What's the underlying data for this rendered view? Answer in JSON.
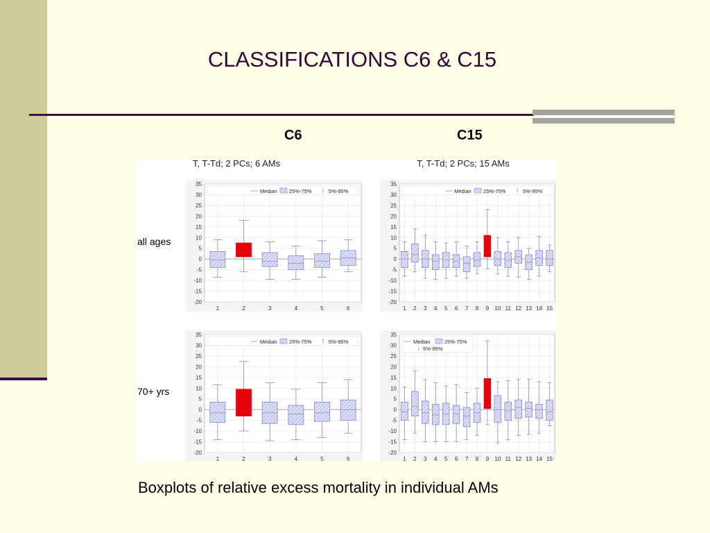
{
  "slide": {
    "title": "CLASSIFICATIONS C6 & C15",
    "left_column_label": "C6",
    "right_column_label": "C15",
    "caption": "Boxplots of relative excess mortality in individual AMs"
  },
  "figure": {
    "left_title": "T, T-Td; 2 PCs; 6 AMs",
    "right_title": "T, T-Td; 2 PCs; 15 AMs",
    "row_labels": [
      "all ages",
      "70+ yrs"
    ],
    "legend": {
      "median": "Median",
      "iqr": "25%-75%",
      "whisker": "5%-95%"
    }
  },
  "colors": {
    "box_fill": "#D8DCF4",
    "box_stroke": "#8888CC",
    "highlight": "#E8000B",
    "median": "#9999BB"
  },
  "chart_data": [
    {
      "type": "boxplot",
      "id": "c6-all-ages",
      "row": "all ages",
      "categories": [
        "1",
        "2",
        "3",
        "4",
        "5",
        "6"
      ],
      "ylim": [
        -20,
        35
      ],
      "yticks": [
        -20,
        -15,
        -10,
        -5,
        0,
        5,
        10,
        15,
        20,
        25,
        30,
        35
      ],
      "grid": true,
      "legend_position": "top",
      "highlight_index": 1,
      "boxes": [
        {
          "w5": -8.5,
          "q1": -4,
          "median": -0.5,
          "q3": 3.5,
          "w95": 9
        },
        {
          "w5": -6,
          "q1": 1,
          "median": 1.5,
          "q3": 7.5,
          "w95": 18
        },
        {
          "w5": -9.5,
          "q1": -3.5,
          "median": -1,
          "q3": 3,
          "w95": 8
        },
        {
          "w5": -9.5,
          "q1": -5,
          "median": -2,
          "q3": 1.5,
          "w95": 6
        },
        {
          "w5": -8.5,
          "q1": -4,
          "median": -1,
          "q3": 2.5,
          "w95": 8.5
        },
        {
          "w5": -6,
          "q1": -3,
          "median": 0.5,
          "q3": 4,
          "w95": 9
        }
      ]
    },
    {
      "type": "boxplot",
      "id": "c15-all-ages",
      "row": "all ages",
      "categories": [
        "1",
        "2",
        "3",
        "4",
        "5",
        "6",
        "7",
        "8",
        "9",
        "10",
        "11",
        "12",
        "13",
        "14",
        "15"
      ],
      "ylim": [
        -20,
        35
      ],
      "yticks": [
        -20,
        -15,
        -10,
        -5,
        0,
        5,
        10,
        15,
        20,
        25,
        30,
        35
      ],
      "grid": true,
      "legend_position": "top",
      "highlight_index": 8,
      "boxes": [
        {
          "w5": -8,
          "q1": -4,
          "median": 0,
          "q3": 3.5,
          "w95": 8
        },
        {
          "w5": -6,
          "q1": -1.5,
          "median": 2,
          "q3": 7,
          "w95": 14
        },
        {
          "w5": -9,
          "q1": -4,
          "median": 0,
          "q3": 4,
          "w95": 11
        },
        {
          "w5": -9.5,
          "q1": -5,
          "median": -1,
          "q3": 2,
          "w95": 8
        },
        {
          "w5": -9,
          "q1": -4,
          "median": -0.5,
          "q3": 3,
          "w95": 7.5
        },
        {
          "w5": -8,
          "q1": -4,
          "median": -1,
          "q3": 2,
          "w95": 8
        },
        {
          "w5": -9,
          "q1": -6,
          "median": -2,
          "q3": 1,
          "w95": 6
        },
        {
          "w5": -7,
          "q1": -3.5,
          "median": -0.5,
          "q3": 3,
          "w95": 8
        },
        {
          "w5": -4.5,
          "q1": 1,
          "median": 1.5,
          "q3": 11,
          "w95": 23
        },
        {
          "w5": -7,
          "q1": -3,
          "median": 0,
          "q3": 3.5,
          "w95": 10
        },
        {
          "w5": -8,
          "q1": -4,
          "median": -0.5,
          "q3": 3,
          "w95": 8
        },
        {
          "w5": -8.5,
          "q1": -2,
          "median": 1,
          "q3": 4,
          "w95": 10
        },
        {
          "w5": -9.5,
          "q1": -5,
          "median": -1.5,
          "q3": 2,
          "w95": 5
        },
        {
          "w5": -8,
          "q1": -3,
          "median": 0.5,
          "q3": 4,
          "w95": 10.5
        },
        {
          "w5": -6,
          "q1": -3,
          "median": 0,
          "q3": 4,
          "w95": 6.5
        }
      ]
    },
    {
      "type": "boxplot",
      "id": "c6-70plus",
      "row": "70+ yrs",
      "categories": [
        "1",
        "2",
        "3",
        "4",
        "5",
        "6"
      ],
      "ylim": [
        -20,
        35
      ],
      "yticks": [
        -20,
        -15,
        -10,
        -5,
        0,
        5,
        10,
        15,
        20,
        25,
        30,
        35
      ],
      "grid": true,
      "legend_position": "top",
      "highlight_index": 1,
      "boxes": [
        {
          "w5": -14,
          "q1": -6,
          "median": -1.5,
          "q3": 3.5,
          "w95": 11.5
        },
        {
          "w5": -10,
          "q1": -3,
          "median": -2.5,
          "q3": 9.5,
          "w95": 22.5
        },
        {
          "w5": -14.5,
          "q1": -6.5,
          "median": -1.5,
          "q3": 3.5,
          "w95": 12.5
        },
        {
          "w5": -14,
          "q1": -7,
          "median": -2,
          "q3": 2,
          "w95": 9.5
        },
        {
          "w5": -13,
          "q1": -5.5,
          "median": -1.5,
          "q3": 3.5,
          "w95": 12.5
        },
        {
          "w5": -11,
          "q1": -5,
          "median": 0,
          "q3": 4.5,
          "w95": 14
        }
      ]
    },
    {
      "type": "boxplot",
      "id": "c15-70plus",
      "row": "70+ yrs",
      "categories": [
        "1",
        "2",
        "3",
        "4",
        "5",
        "6",
        "7",
        "8",
        "9",
        "10",
        "11",
        "12",
        "13",
        "14",
        "15"
      ],
      "ylim": [
        -20,
        35
      ],
      "yticks": [
        -20,
        -15,
        -10,
        -5,
        0,
        5,
        10,
        15,
        20,
        25,
        30,
        35
      ],
      "grid": true,
      "legend_position": "top-left",
      "highlight_index": 8,
      "boxes": [
        {
          "w5": -14,
          "q1": -5,
          "median": -1,
          "q3": 3.5,
          "w95": 10.5
        },
        {
          "w5": -11,
          "q1": -3,
          "median": 1.5,
          "q3": 8.5,
          "w95": 18
        },
        {
          "w5": -15,
          "q1": -6.5,
          "median": -1.5,
          "q3": 4,
          "w95": 14
        },
        {
          "w5": -15,
          "q1": -7,
          "median": -2.5,
          "q3": 2.5,
          "w95": 12.5
        },
        {
          "w5": -15,
          "q1": -7,
          "median": -2,
          "q3": 3,
          "w95": 11
        },
        {
          "w5": -15,
          "q1": -6.5,
          "median": -2,
          "q3": 2,
          "w95": 11.5
        },
        {
          "w5": -14,
          "q1": -8,
          "median": -3,
          "q3": 1,
          "w95": 8
        },
        {
          "w5": -12,
          "q1": -6,
          "median": -1.5,
          "q3": 3,
          "w95": 10
        },
        {
          "w5": -7,
          "q1": 0.5,
          "median": 1,
          "q3": 14.5,
          "w95": 32
        },
        {
          "w5": -15.5,
          "q1": -6,
          "median": 0,
          "q3": 6.5,
          "w95": 13
        },
        {
          "w5": -14,
          "q1": -5,
          "median": -0.5,
          "q3": 3.5,
          "w95": 13.5
        },
        {
          "w5": -12,
          "q1": -4,
          "median": 1,
          "q3": 4.5,
          "w95": 14
        },
        {
          "w5": -11.5,
          "q1": -3.5,
          "median": 0.5,
          "q3": 3.5,
          "w95": 14
        },
        {
          "w5": -11,
          "q1": -4,
          "median": 0,
          "q3": 2.5,
          "w95": 13
        },
        {
          "w5": -7.5,
          "q1": -5,
          "median": -1,
          "q3": 4.5,
          "w95": 12.5
        }
      ]
    }
  ]
}
